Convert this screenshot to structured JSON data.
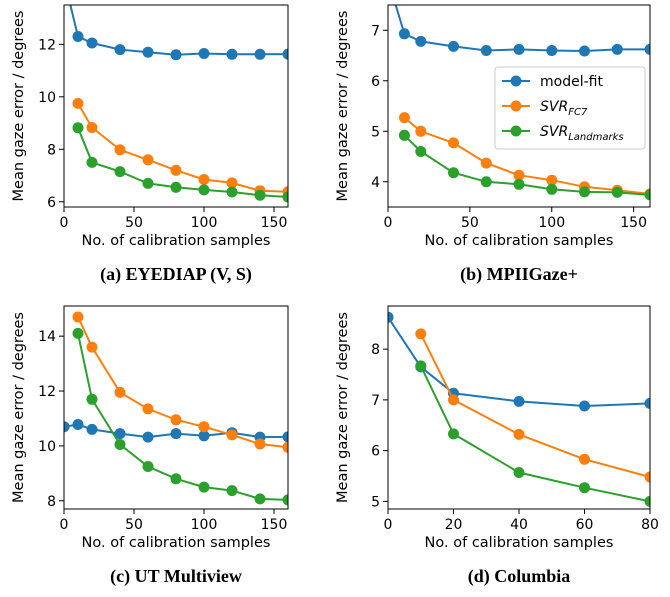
{
  "colors": {
    "model_fit": "#1f77b4",
    "svr_fc7": "#ff7f0e",
    "svr_landmarks": "#2ca02c"
  },
  "legend": {
    "placement": "inside-upper-right of panel (b)",
    "entries": [
      {
        "base": "model-fit",
        "sub": "",
        "color": "#1f77b4"
      },
      {
        "base": "SVR",
        "sub": "FC7",
        "color": "#ff7f0e"
      },
      {
        "base": "SVR",
        "sub": "Landmarks",
        "color": "#2ca02c"
      }
    ]
  },
  "chart_data": [
    {
      "type": "line",
      "caption": "(a) EYEDIAP (V, S)",
      "xlabel": "No. of calibration samples",
      "ylabel": "Mean gaze error / degrees",
      "xlim": [
        0,
        160
      ],
      "ylim": [
        5.8,
        13.5
      ],
      "xticks": [
        0,
        50,
        100,
        150
      ],
      "yticks": [
        6,
        8,
        10,
        12
      ],
      "grid": false,
      "series": [
        {
          "name": "model-fit",
          "x": [
            0,
            10,
            20,
            40,
            60,
            80,
            100,
            120,
            140,
            160
          ],
          "values": [
            14.5,
            12.3,
            12.05,
            11.8,
            11.7,
            11.6,
            11.65,
            11.62,
            11.62,
            11.63
          ]
        },
        {
          "name": "SVR_FC7",
          "x": [
            10,
            20,
            40,
            60,
            80,
            100,
            120,
            140,
            160
          ],
          "values": [
            9.75,
            8.83,
            7.98,
            7.6,
            7.2,
            6.85,
            6.72,
            6.42,
            6.38
          ]
        },
        {
          "name": "SVR_Landmarks",
          "x": [
            10,
            20,
            40,
            60,
            80,
            100,
            120,
            140,
            160
          ],
          "values": [
            8.82,
            7.5,
            7.15,
            6.7,
            6.55,
            6.45,
            6.37,
            6.25,
            6.18
          ]
        }
      ]
    },
    {
      "type": "line",
      "caption": "(b) MPIIGaze+",
      "xlabel": "No. of calibration samples",
      "ylabel": "Mean gaze error / degrees",
      "xlim": [
        0,
        160
      ],
      "ylim": [
        3.5,
        7.5
      ],
      "xticks": [
        0,
        50,
        100,
        150
      ],
      "yticks": [
        4,
        5,
        6,
        7
      ],
      "grid": false,
      "series": [
        {
          "name": "model-fit",
          "x": [
            0,
            10,
            20,
            40,
            60,
            80,
            100,
            120,
            140,
            160
          ],
          "values": [
            8.0,
            6.93,
            6.78,
            6.68,
            6.6,
            6.62,
            6.6,
            6.59,
            6.62,
            6.62
          ]
        },
        {
          "name": "SVR_FC7",
          "x": [
            10,
            20,
            40,
            60,
            80,
            100,
            120,
            140,
            160
          ],
          "values": [
            5.27,
            5.0,
            4.77,
            4.37,
            4.13,
            4.03,
            3.9,
            3.83,
            3.76
          ]
        },
        {
          "name": "SVR_Landmarks",
          "x": [
            10,
            20,
            40,
            60,
            80,
            100,
            120,
            140,
            160
          ],
          "values": [
            4.92,
            4.6,
            4.18,
            4.0,
            3.95,
            3.85,
            3.8,
            3.79,
            3.74
          ]
        }
      ]
    },
    {
      "type": "line",
      "caption": "(c) UT Multiview",
      "xlabel": "No. of calibration samples",
      "ylabel": "Mean gaze error / degrees",
      "xlim": [
        0,
        160
      ],
      "ylim": [
        7.7,
        15.1
      ],
      "xticks": [
        0,
        50,
        100,
        150
      ],
      "yticks": [
        8,
        10,
        12,
        14
      ],
      "grid": false,
      "series": [
        {
          "name": "model-fit",
          "x": [
            0,
            10,
            20,
            40,
            60,
            80,
            100,
            120,
            140,
            160
          ],
          "values": [
            10.7,
            10.78,
            10.6,
            10.45,
            10.32,
            10.45,
            10.37,
            10.48,
            10.32,
            10.33
          ]
        },
        {
          "name": "SVR_FC7",
          "x": [
            10,
            20,
            40,
            60,
            80,
            100,
            120,
            140,
            160
          ],
          "values": [
            14.7,
            13.6,
            11.95,
            11.35,
            10.95,
            10.7,
            10.4,
            10.07,
            9.95
          ]
        },
        {
          "name": "SVR_Landmarks",
          "x": [
            10,
            20,
            40,
            60,
            80,
            100,
            120,
            140,
            160
          ],
          "values": [
            14.1,
            11.7,
            10.05,
            9.25,
            8.8,
            8.5,
            8.37,
            8.07,
            8.03
          ]
        }
      ]
    },
    {
      "type": "line",
      "caption": "(d) Columbia",
      "xlabel": "No. of calibration samples",
      "ylabel": "Mean gaze error / degrees",
      "xlim": [
        0,
        80
      ],
      "ylim": [
        4.85,
        8.85
      ],
      "xticks": [
        0,
        20,
        40,
        60,
        80
      ],
      "yticks": [
        5,
        6,
        7,
        8
      ],
      "grid": false,
      "series": [
        {
          "name": "model-fit",
          "x": [
            0,
            10,
            20,
            40,
            60,
            80
          ],
          "values": [
            8.63,
            7.65,
            7.13,
            6.97,
            6.88,
            6.93
          ]
        },
        {
          "name": "SVR_FC7",
          "x": [
            10,
            20,
            40,
            60,
            80
          ],
          "values": [
            8.3,
            7.0,
            6.32,
            5.83,
            5.48
          ]
        },
        {
          "name": "SVR_Landmarks",
          "x": [
            10,
            20,
            40,
            60,
            80
          ],
          "values": [
            7.67,
            6.33,
            5.57,
            5.27,
            5.0
          ]
        }
      ]
    }
  ]
}
